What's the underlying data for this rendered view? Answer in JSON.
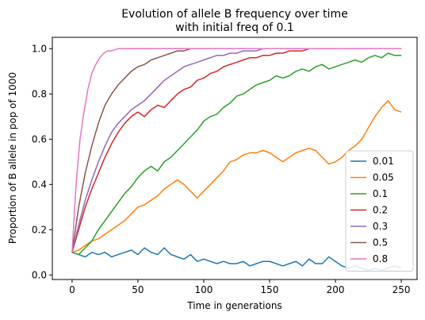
{
  "chart_data": {
    "type": "line",
    "title_line1": "Evolution of allele B frequency over time",
    "title_line2": "with initial freq of 0.1",
    "xlabel": "Time in generations",
    "ylabel": "Proportion of B allele in pop of 1000",
    "xlim": [
      -15,
      262
    ],
    "ylim": [
      -0.02,
      1.05
    ],
    "xticks": [
      0,
      50,
      100,
      150,
      200,
      250
    ],
    "yticks": [
      0.0,
      0.2,
      0.4,
      0.6,
      0.8,
      1.0
    ],
    "legend_position": "right",
    "series": [
      {
        "name": "0.01",
        "color": "#1f77b4",
        "x": [
          0,
          5,
          10,
          15,
          20,
          25,
          30,
          35,
          40,
          45,
          50,
          55,
          60,
          65,
          70,
          75,
          80,
          85,
          90,
          95,
          100,
          105,
          110,
          115,
          120,
          125,
          130,
          135,
          140,
          145,
          150,
          155,
          160,
          165,
          170,
          175,
          180,
          185,
          190,
          195,
          200,
          205,
          210,
          215,
          220,
          225,
          230,
          235,
          240,
          245,
          250
        ],
        "y": [
          0.1,
          0.09,
          0.08,
          0.1,
          0.09,
          0.1,
          0.08,
          0.09,
          0.1,
          0.11,
          0.09,
          0.12,
          0.1,
          0.09,
          0.12,
          0.09,
          0.08,
          0.07,
          0.09,
          0.06,
          0.07,
          0.06,
          0.05,
          0.06,
          0.05,
          0.05,
          0.06,
          0.04,
          0.05,
          0.06,
          0.06,
          0.05,
          0.04,
          0.05,
          0.06,
          0.04,
          0.07,
          0.05,
          0.05,
          0.08,
          0.06,
          0.04,
          0.03,
          0.04,
          0.03,
          0.02,
          0.03,
          0.02,
          0.03,
          0.04,
          0.03
        ]
      },
      {
        "name": "0.05",
        "color": "#ff7f0e",
        "x": [
          0,
          5,
          10,
          15,
          20,
          25,
          30,
          35,
          40,
          45,
          50,
          55,
          60,
          65,
          70,
          75,
          80,
          85,
          90,
          95,
          100,
          105,
          110,
          115,
          120,
          125,
          130,
          135,
          140,
          145,
          150,
          155,
          160,
          165,
          170,
          175,
          180,
          185,
          190,
          195,
          200,
          205,
          210,
          215,
          220,
          225,
          230,
          235,
          240,
          245,
          250
        ],
        "y": [
          0.1,
          0.11,
          0.13,
          0.15,
          0.16,
          0.18,
          0.2,
          0.22,
          0.24,
          0.27,
          0.3,
          0.31,
          0.33,
          0.35,
          0.38,
          0.4,
          0.42,
          0.4,
          0.37,
          0.34,
          0.37,
          0.4,
          0.43,
          0.46,
          0.5,
          0.51,
          0.53,
          0.54,
          0.54,
          0.55,
          0.54,
          0.52,
          0.5,
          0.52,
          0.54,
          0.55,
          0.56,
          0.55,
          0.52,
          0.49,
          0.5,
          0.52,
          0.55,
          0.57,
          0.6,
          0.65,
          0.7,
          0.74,
          0.77,
          0.73,
          0.72
        ]
      },
      {
        "name": "0.1",
        "color": "#2ca02c",
        "x": [
          0,
          5,
          10,
          15,
          20,
          25,
          30,
          35,
          40,
          45,
          50,
          55,
          60,
          65,
          70,
          75,
          80,
          85,
          90,
          95,
          100,
          105,
          110,
          115,
          120,
          125,
          130,
          135,
          140,
          145,
          150,
          155,
          160,
          165,
          170,
          175,
          180,
          185,
          190,
          195,
          200,
          205,
          210,
          215,
          220,
          225,
          230,
          235,
          240,
          245,
          250
        ],
        "y": [
          0.1,
          0.09,
          0.12,
          0.15,
          0.2,
          0.24,
          0.28,
          0.32,
          0.36,
          0.39,
          0.43,
          0.46,
          0.48,
          0.46,
          0.5,
          0.52,
          0.55,
          0.58,
          0.61,
          0.64,
          0.68,
          0.7,
          0.71,
          0.74,
          0.76,
          0.79,
          0.8,
          0.82,
          0.84,
          0.85,
          0.86,
          0.88,
          0.87,
          0.88,
          0.9,
          0.91,
          0.9,
          0.92,
          0.93,
          0.91,
          0.92,
          0.93,
          0.94,
          0.95,
          0.94,
          0.96,
          0.97,
          0.96,
          0.98,
          0.97,
          0.97
        ]
      },
      {
        "name": "0.2",
        "color": "#d62728",
        "x": [
          0,
          5,
          10,
          15,
          20,
          25,
          30,
          35,
          40,
          45,
          50,
          55,
          60,
          65,
          70,
          75,
          80,
          85,
          90,
          95,
          100,
          105,
          110,
          115,
          120,
          125,
          130,
          135,
          140,
          145,
          150,
          155,
          160,
          165,
          170,
          175,
          180,
          185,
          190,
          195,
          200,
          205,
          210,
          215,
          220,
          225,
          230,
          235,
          240,
          245,
          250
        ],
        "y": [
          0.1,
          0.2,
          0.3,
          0.38,
          0.45,
          0.52,
          0.58,
          0.63,
          0.67,
          0.7,
          0.72,
          0.7,
          0.73,
          0.75,
          0.74,
          0.77,
          0.8,
          0.82,
          0.83,
          0.86,
          0.87,
          0.89,
          0.9,
          0.92,
          0.93,
          0.94,
          0.95,
          0.96,
          0.96,
          0.97,
          0.97,
          0.98,
          0.98,
          0.99,
          0.99,
          0.99,
          1.0,
          1.0,
          1.0,
          1.0,
          1.0,
          1.0,
          1.0,
          1.0,
          1.0,
          1.0,
          1.0,
          1.0,
          1.0,
          1.0,
          1.0
        ]
      },
      {
        "name": "0.3",
        "color": "#9467bd",
        "x": [
          0,
          5,
          10,
          15,
          20,
          25,
          30,
          35,
          40,
          45,
          50,
          55,
          60,
          65,
          70,
          75,
          80,
          85,
          90,
          95,
          100,
          105,
          110,
          115,
          120,
          125,
          130,
          135,
          140,
          145,
          150,
          155,
          160,
          165,
          170,
          175,
          180,
          185,
          190,
          195,
          200,
          205,
          210,
          215,
          220,
          225,
          230,
          235,
          240,
          245,
          250
        ],
        "y": [
          0.1,
          0.22,
          0.33,
          0.42,
          0.5,
          0.57,
          0.63,
          0.67,
          0.7,
          0.73,
          0.75,
          0.77,
          0.8,
          0.83,
          0.86,
          0.88,
          0.9,
          0.92,
          0.93,
          0.94,
          0.95,
          0.96,
          0.97,
          0.97,
          0.98,
          0.98,
          0.99,
          0.99,
          0.99,
          1.0,
          1.0,
          1.0,
          1.0,
          1.0,
          1.0,
          1.0,
          1.0,
          1.0,
          1.0,
          1.0,
          1.0,
          1.0,
          1.0,
          1.0,
          1.0,
          1.0,
          1.0,
          1.0,
          1.0,
          1.0,
          1.0
        ]
      },
      {
        "name": "0.5",
        "color": "#8c564b",
        "x": [
          0,
          5,
          10,
          15,
          20,
          25,
          30,
          35,
          40,
          45,
          50,
          55,
          60,
          65,
          70,
          75,
          80,
          85,
          90,
          95,
          100,
          105,
          110,
          115,
          120,
          125,
          130,
          135,
          140,
          145,
          150,
          155,
          160,
          165,
          170,
          175,
          180,
          185,
          190,
          195,
          200,
          205,
          210,
          215,
          220,
          225,
          230,
          235,
          240,
          245,
          250
        ],
        "y": [
          0.1,
          0.3,
          0.45,
          0.57,
          0.67,
          0.75,
          0.8,
          0.84,
          0.87,
          0.9,
          0.92,
          0.93,
          0.95,
          0.96,
          0.97,
          0.98,
          0.99,
          0.99,
          1.0,
          1.0,
          1.0,
          1.0,
          1.0,
          1.0,
          1.0,
          1.0,
          1.0,
          1.0,
          1.0,
          1.0,
          1.0,
          1.0,
          1.0,
          1.0,
          1.0,
          1.0,
          1.0,
          1.0,
          1.0,
          1.0,
          1.0,
          1.0,
          1.0,
          1.0,
          1.0,
          1.0,
          1.0,
          1.0,
          1.0,
          1.0,
          1.0
        ]
      },
      {
        "name": "0.8",
        "color": "#e377c2",
        "x": [
          0,
          3,
          6,
          9,
          12,
          15,
          18,
          21,
          24,
          27,
          30,
          35,
          40,
          45,
          50,
          60,
          70,
          80,
          90,
          100,
          110,
          120,
          130,
          140,
          150,
          160,
          170,
          180,
          190,
          200,
          210,
          220,
          230,
          240,
          250
        ],
        "y": [
          0.1,
          0.4,
          0.6,
          0.72,
          0.82,
          0.89,
          0.93,
          0.96,
          0.98,
          0.99,
          0.99,
          1.0,
          1.0,
          1.0,
          1.0,
          1.0,
          1.0,
          1.0,
          1.0,
          1.0,
          1.0,
          1.0,
          1.0,
          1.0,
          1.0,
          1.0,
          1.0,
          1.0,
          1.0,
          1.0,
          1.0,
          1.0,
          1.0,
          1.0,
          1.0
        ]
      }
    ]
  }
}
